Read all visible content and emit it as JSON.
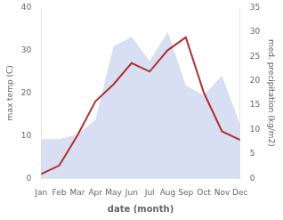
{
  "chart_data": {
    "type": "line",
    "xlabel": "date (month)",
    "ylabel": "max temp (C)",
    "y2label": "med. precipitation (kg/m2)",
    "categories": [
      "Jan",
      "Feb",
      "Mar",
      "Apr",
      "May",
      "Jun",
      "Jul",
      "Aug",
      "Sep",
      "Oct",
      "Nov",
      "Dec"
    ],
    "series": [
      {
        "type": "area",
        "axis": "y2",
        "color": "#b8c4e8",
        "values": [
          8,
          8,
          9,
          12,
          27,
          29,
          24,
          30,
          19,
          17,
          21,
          11
        ]
      },
      {
        "type": "line",
        "color": "#b03030",
        "values": [
          1,
          3,
          10,
          18,
          22,
          27,
          25,
          30,
          33,
          20,
          11,
          9
        ]
      }
    ],
    "ylim": [
      0,
      40
    ],
    "yticks": [
      0,
      10,
      20,
      30,
      40
    ],
    "y2lim": [
      0,
      35
    ],
    "y2ticks": [
      0,
      5,
      10,
      15,
      20,
      25,
      30,
      35
    ],
    "grid": false
  }
}
